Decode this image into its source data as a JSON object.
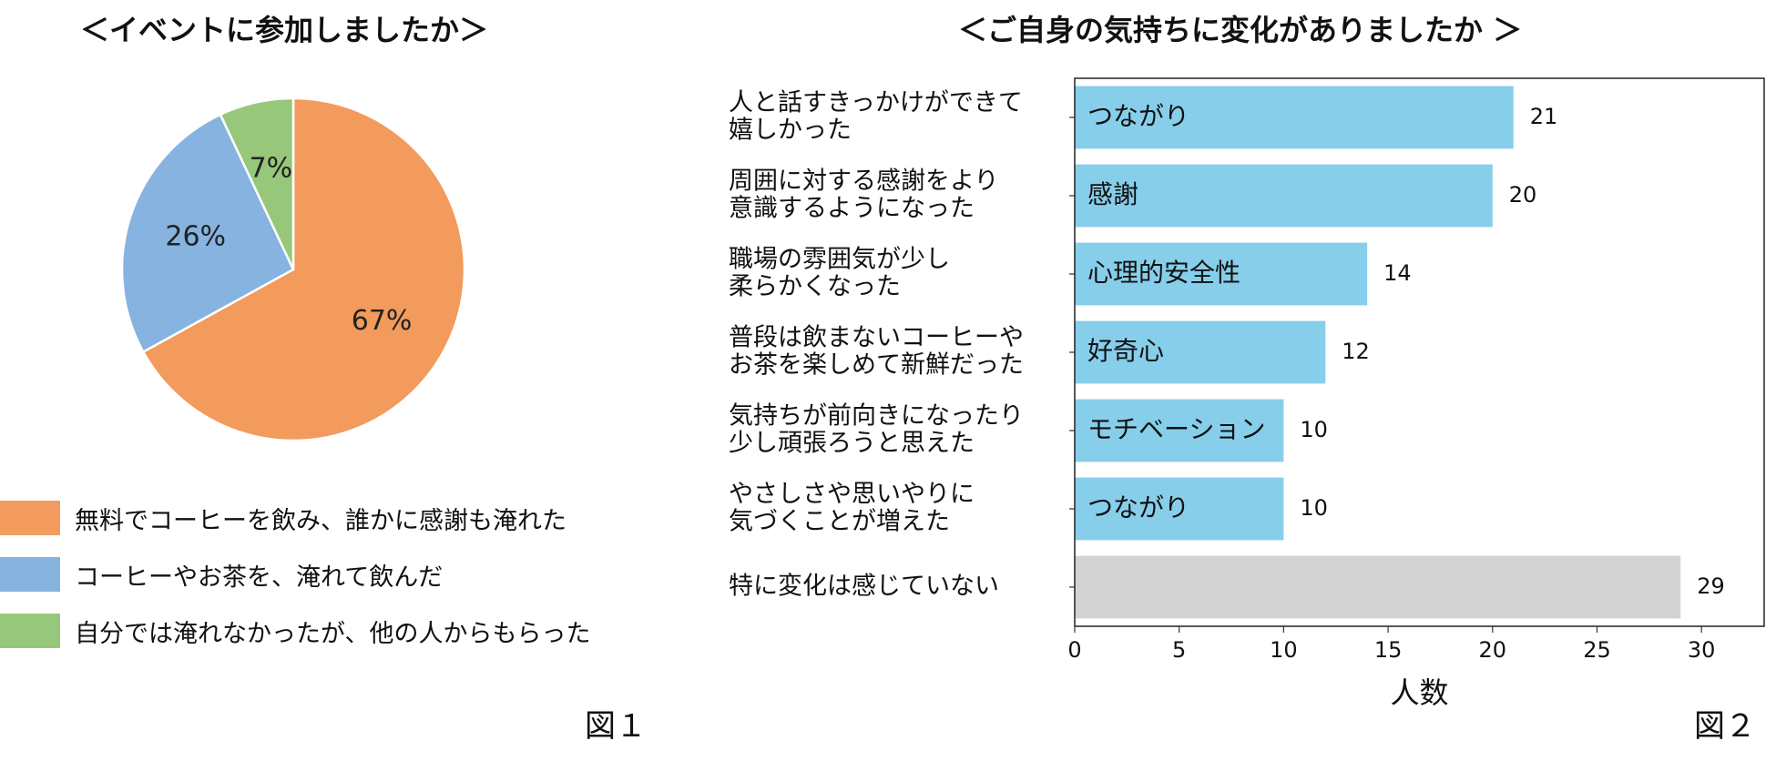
{
  "figure1": {
    "title": "＜イベントに参加しましたか＞",
    "fig_label": "図１"
  },
  "figure2": {
    "title": "＜ご自身の気持ちに変化がありましたか ＞",
    "fig_label": "図２"
  },
  "chart_data": [
    {
      "type": "pie",
      "title": "＜イベントに参加しましたか＞",
      "labels": [
        "無料でコーヒーを飲み、誰かに感謝も淹れた",
        "コーヒーやお茶を、淹れて飲んだ",
        "自分では淹れなかったが、他の人からもらった"
      ],
      "values": [
        67,
        26,
        7
      ],
      "value_labels": [
        "67%",
        "26%",
        "7%"
      ],
      "colors": [
        "#F29B5C",
        "#87B3E0",
        "#97C77A"
      ],
      "legend": "bottom-left"
    },
    {
      "type": "bar",
      "orientation": "horizontal",
      "title": "＜ご自身の気持ちに変化がありましたか ＞",
      "categories": [
        [
          "人と話すきっかけができて",
          "嬉しかった"
        ],
        [
          "周囲に対する感謝をより",
          "意識するようになった"
        ],
        [
          "職場の雰囲気が少し",
          "柔らかくなった"
        ],
        [
          "普段は飲まないコーヒーや",
          "お茶を楽しめて新鮮だった"
        ],
        [
          "気持ちが前向きになったり",
          "少し頑張ろうと思えた"
        ],
        [
          "やさしさや思いやりに",
          "気づくことが増えた"
        ],
        [
          "特に変化は感じていない"
        ]
      ],
      "values": [
        21,
        20,
        14,
        12,
        10,
        10,
        29
      ],
      "bar_labels": [
        "つながり",
        "感謝",
        "心理的安全性",
        "好奇心",
        "モチベーション",
        "つながり",
        ""
      ],
      "bar_colors": [
        "#87CEEB",
        "#87CEEB",
        "#87CEEB",
        "#87CEEB",
        "#87CEEB",
        "#87CEEB",
        "#D3D3D3"
      ],
      "xlabel": "人数",
      "xlim": [
        0,
        33
      ],
      "xticks": [
        0,
        5,
        10,
        15,
        20,
        25,
        30
      ],
      "grid": false
    }
  ]
}
